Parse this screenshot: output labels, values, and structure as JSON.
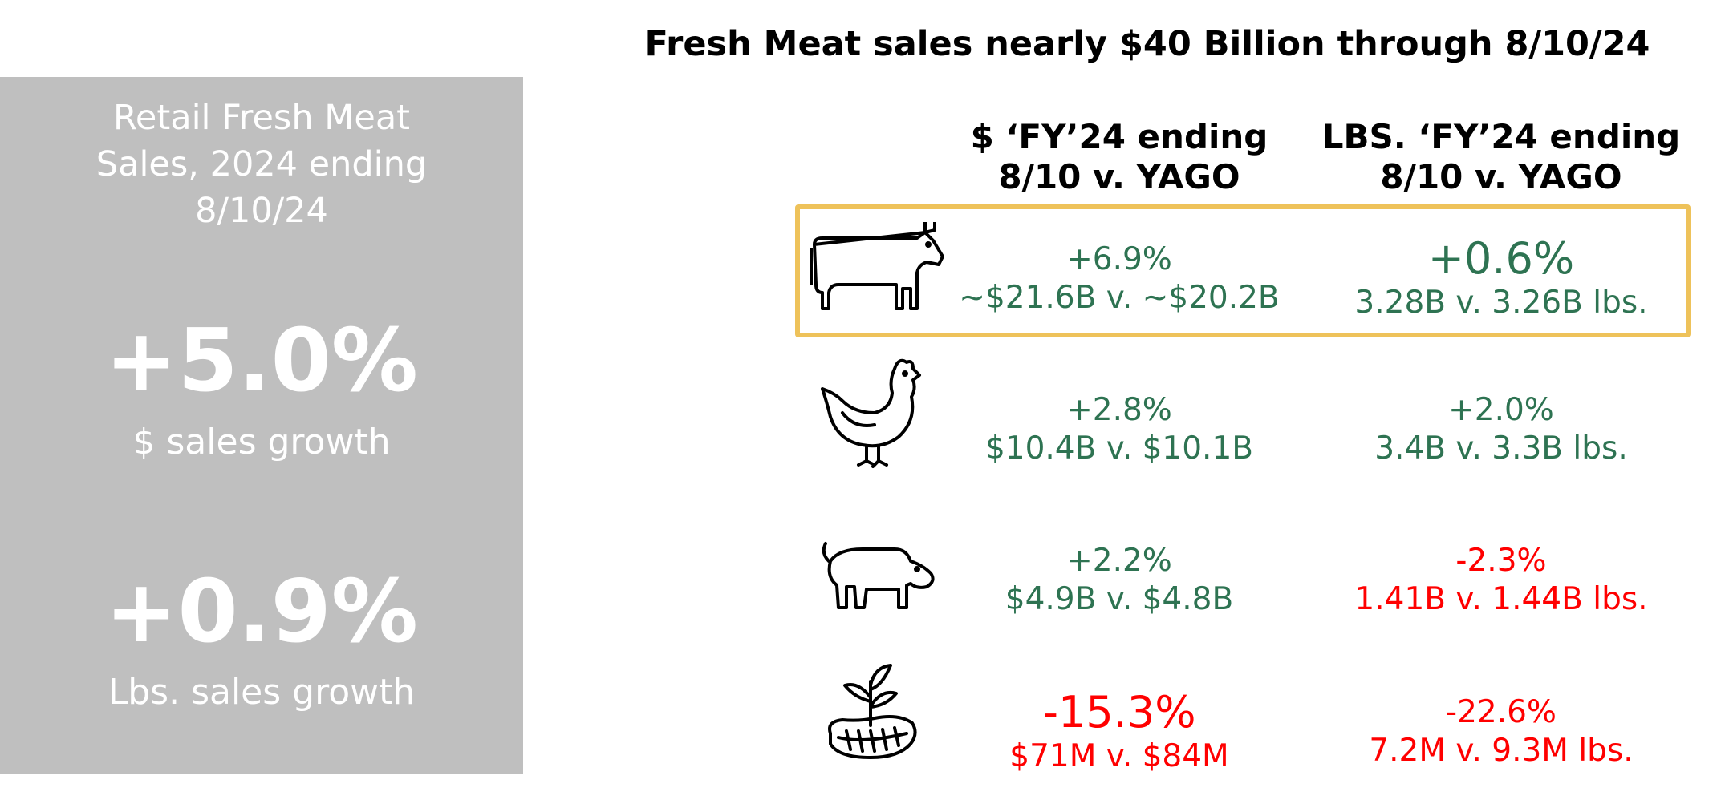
{
  "title": "Fresh Meat sales nearly $40 Billion through 8/10/24",
  "summary": {
    "title_lines": [
      "Retail Fresh Meat",
      "Sales, 2024 ending",
      "8/10/24"
    ],
    "dollar_growth": "+5.0%",
    "dollar_label": "$ sales growth",
    "lbs_growth": "+0.9%",
    "lbs_label": "Lbs. sales growth",
    "background": "#bfbfbf"
  },
  "columns": {
    "dollars": [
      "$ ‘FY’24 ending",
      "8/10  v. YAGO"
    ],
    "lbs": [
      "LBS. ‘FY’24 ending",
      "8/10  v. YAGO"
    ]
  },
  "colors": {
    "positive": "#2e7352",
    "negative": "#ff0000",
    "highlight": "#eec25a"
  },
  "rows": [
    {
      "icon": "cow-icon",
      "highlighted": true,
      "dollars": {
        "pct": "+6.9%",
        "detail": "~$21.6B v. ~$20.2B"
      },
      "lbs": {
        "pct": "+0.6%",
        "detail": "3.28B v. 3.26B lbs."
      }
    },
    {
      "icon": "chicken-icon",
      "dollars": {
        "pct": "+2.8%",
        "detail": "$10.4B v. $10.1B"
      },
      "lbs": {
        "pct": "+2.0%",
        "detail": "3.4B v. 3.3B lbs."
      }
    },
    {
      "icon": "pig-icon",
      "dollars": {
        "pct": "+2.2%",
        "detail": "$4.9B v. $4.8B"
      },
      "lbs": {
        "pct": "-2.3%",
        "detail": "1.41B v. 1.44B lbs."
      }
    },
    {
      "icon": "plant-based-meat-icon",
      "dollars": {
        "pct": "-15.3%",
        "detail": "$71M v. $84M"
      },
      "lbs": {
        "pct": "-22.6%",
        "detail": "7.2M v. 9.3M lbs."
      }
    }
  ]
}
